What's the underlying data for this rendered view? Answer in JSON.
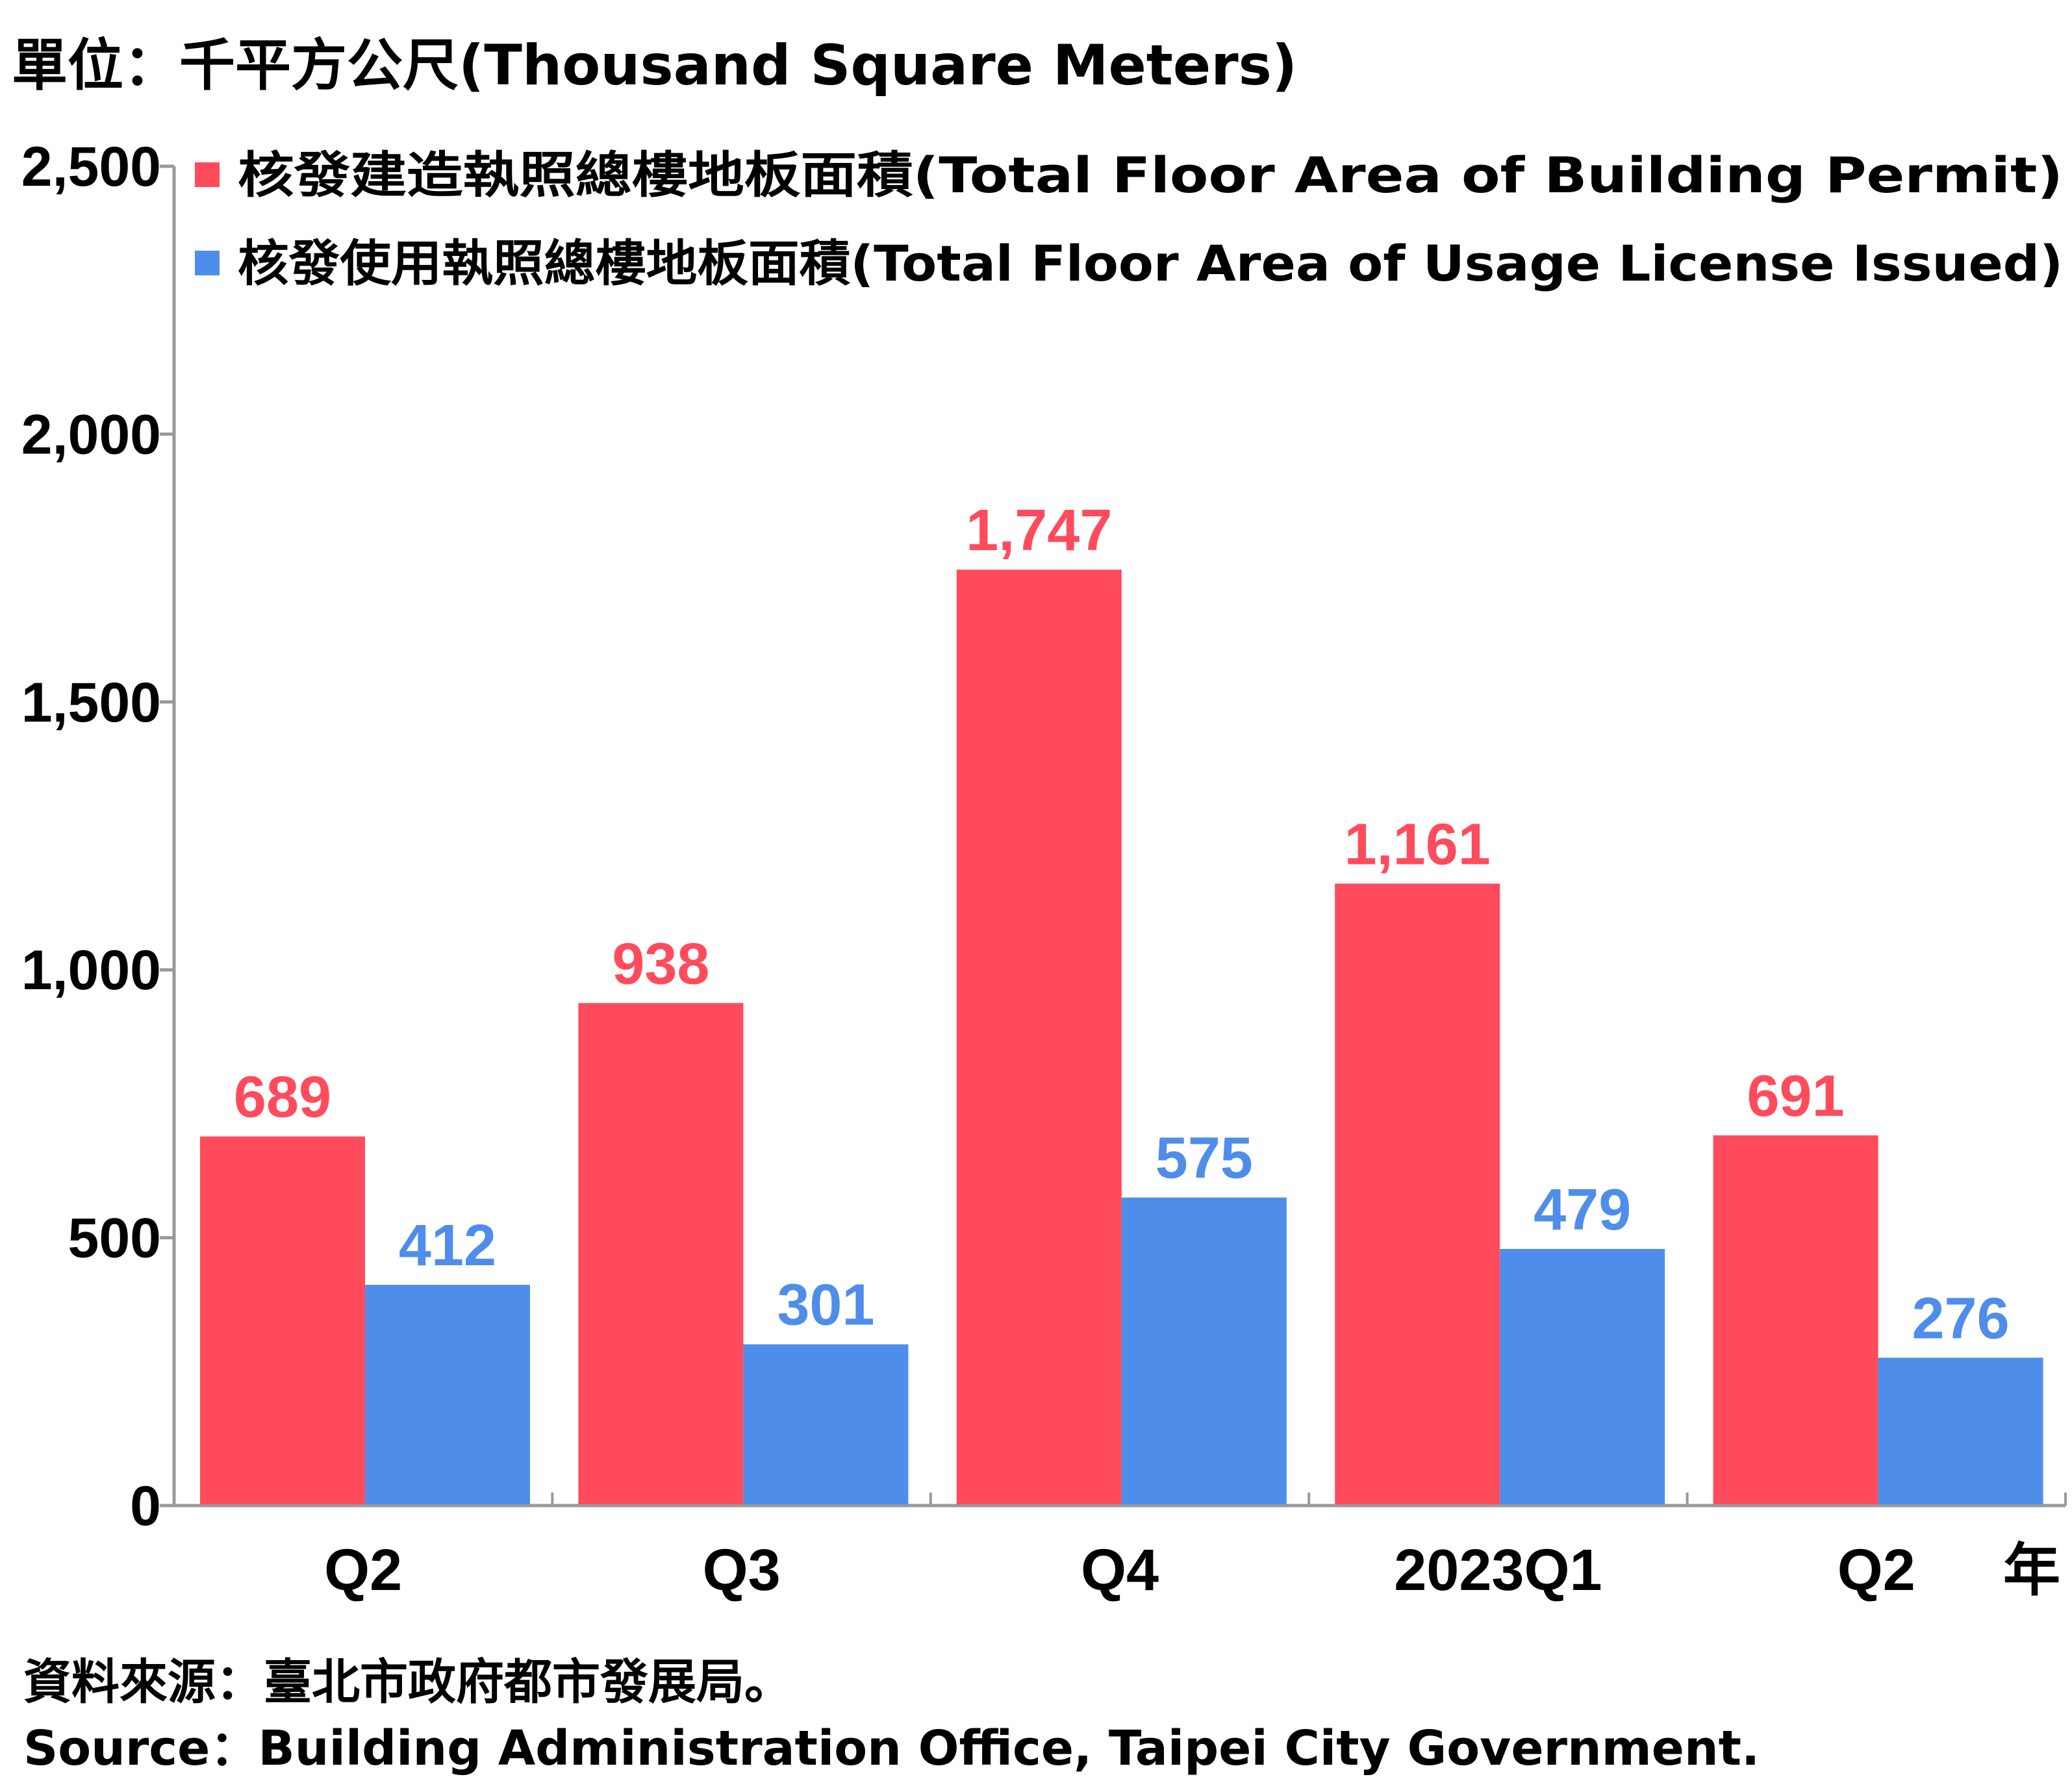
{
  "unit_label": "單位：千平方公尺(Thousand Square Meters)",
  "x_unit_label": "年",
  "source_zh": "資料來源：臺北市政府都市發展局。",
  "source_en": "Source：Building Administration Office, Taipei City Government.",
  "colors": {
    "building_permit": "#ff4b5c",
    "usage_license": "#4f8deb",
    "axis": "#999999",
    "text": "#000000"
  },
  "chart_data": {
    "type": "bar",
    "categories": [
      "Q2",
      "Q3",
      "Q4",
      "2023Q1",
      "Q2"
    ],
    "series": [
      {
        "name": "核發建造執照總樓地板面積(Total Floor Area of Building Permit)",
        "values": [
          689,
          938,
          1747,
          1161,
          691
        ],
        "data_labels": [
          "689",
          "938",
          "1,747",
          "1,161",
          "691"
        ]
      },
      {
        "name": "核發使用執照總樓地板面積(Total Floor Area of Usage License Issued)",
        "values": [
          412,
          301,
          575,
          479,
          276
        ],
        "data_labels": [
          "412",
          "301",
          "575",
          "479",
          "276"
        ]
      }
    ],
    "ylim": [
      0,
      2500
    ],
    "yticks": [
      0,
      500,
      1000,
      1500,
      2000,
      2500
    ],
    "ytick_labels": [
      "0",
      "500",
      "1,000",
      "1,500",
      "2,000",
      "2,500"
    ],
    "grid": false,
    "legend_position": "top-left"
  }
}
